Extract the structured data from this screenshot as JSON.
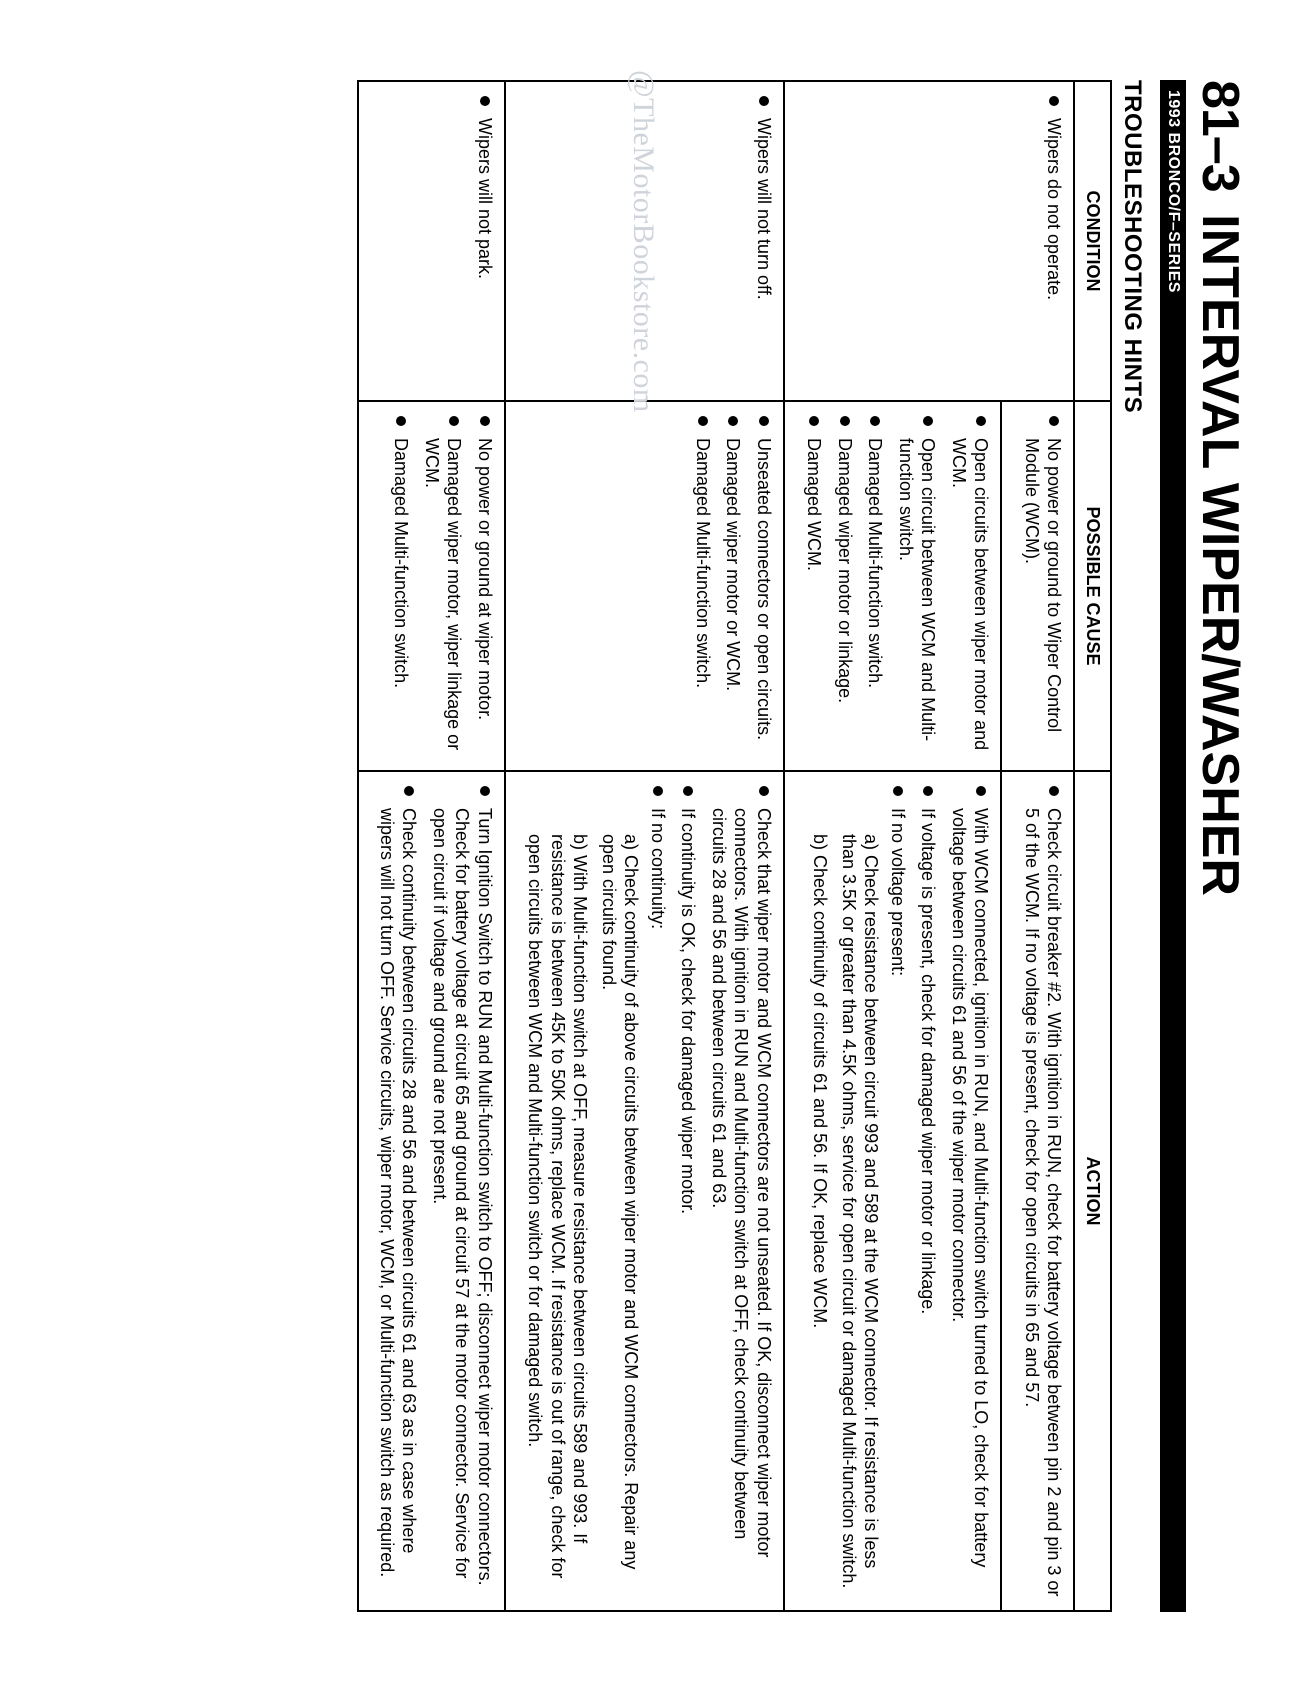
{
  "header": {
    "section_number": "81–3",
    "section_title": "INTERVAL WIPER/WASHER",
    "model_bar": "1993  BRONCO/F–SERIES"
  },
  "watermark": "@TheMotorBookstore.com",
  "table": {
    "title": "TROUBLESHOOTING HINTS",
    "columns": [
      "CONDITION",
      "POSSIBLE CAUSE",
      "ACTION"
    ],
    "rows": [
      {
        "condition": [
          "Wipers do not operate."
        ],
        "cause": [
          "No power or ground to Wiper Control Module (WCM)."
        ],
        "action": [
          {
            "text": "Check circuit breaker #2. With ignition in RUN, check for battery voltage between pin 2 and pin 3 or 5 of the WCM. If no voltage is present, check for open circuits in 65 and 57."
          }
        ]
      },
      {
        "condition": [],
        "cause": [
          "Open circuits between wiper motor and WCM.",
          "Open circuit between WCM and Multi-function switch.",
          "Damaged Multi-function switch.",
          "Damaged wiper motor or linkage.",
          "Damaged WCM."
        ],
        "action": [
          {
            "text": "With WCM connected, ignition in RUN, and Multi-function switch turned to LO, check for battery voltage between circuits 61 and 56 of the wiper motor connector."
          },
          {
            "text": "If voltage is present, check for damaged wiper motor or linkage."
          },
          {
            "text": "If no voltage present:",
            "subs": [
              "a) Check resistance between circuit 993 and 589 at the WCM connector. If resistance is less than 3.5K or greater than 4.5K ohms, service for open circuit or damaged Multi-function switch.",
              "b) Check continuity of circuits 61 and 56. If OK, replace WCM."
            ]
          }
        ]
      },
      {
        "condition": [
          "Wipers will not turn off."
        ],
        "cause": [
          "Unseated connectors or open circuits.",
          "Damaged wiper motor or WCM.",
          "Damaged Multi-function switch."
        ],
        "action": [
          {
            "text": "Check that wiper motor and WCM connectors are not unseated. If OK, disconnect wiper motor connectors. With ignition in RUN and Multi-function switch at OFF, check continuity between circuits 28 and 56 and between circuits 61 and 63."
          },
          {
            "text": "If continuity is OK, check for damaged wiper motor."
          },
          {
            "text": "If no continuity:",
            "subs": [
              "a) Check continuity of above circuits between wiper motor and WCM connectors. Repair any open circuits found.",
              "b) With Multi-function switch at OFF, measure resistance between circuits 589 and 993. If resistance is between 45K to 50K ohms, replace WCM. If resistance is out of range, check for open circuits between WCM and Multi-function switch or for damaged switch."
            ]
          }
        ]
      },
      {
        "condition": [
          "Wipers will not park."
        ],
        "cause": [
          "No power or ground at wiper motor.",
          "Damaged wiper motor, wiper linkage or WCM.",
          "Damaged Multi-function switch."
        ],
        "action": [
          {
            "text": "Turn Ignition Switch to RUN and Multi-function switch to OFF; disconnect wiper motor connectors. Check for battery voltage at circuit 65 and ground at circuit 57 at the motor connector. Service for open circuit if voltage and ground are not present."
          },
          {
            "text": "Check continuity between circuits 28 and 56 and between circuits 61 and 63 as in case where wipers will not turn OFF. Service circuits, wiper motor, WCM, or Multi-function switch as required."
          }
        ]
      }
    ]
  }
}
